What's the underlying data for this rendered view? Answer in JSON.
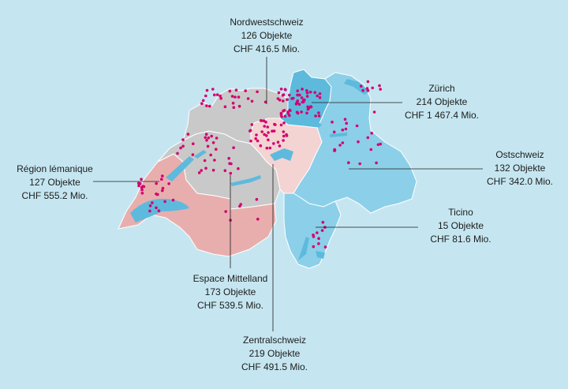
{
  "regions": [
    {
      "id": "nordwestschweiz",
      "name": "Nordwestschweiz",
      "count": "126 Objekte",
      "value": "CHF 416.5 Mio.",
      "color": "#c9c9c9"
    },
    {
      "id": "zuerich",
      "name": "Zürich",
      "count": "214 Objekte",
      "value": "CHF 1 467.4 Mio.",
      "color": "#5dbadd"
    },
    {
      "id": "ostschweiz",
      "name": "Ostschweiz",
      "count": "132 Objekte",
      "value": "CHF 342.0 Mio.",
      "color": "#8ccfe8"
    },
    {
      "id": "ticino",
      "name": "Ticino",
      "count": "15 Objekte",
      "value": "CHF 81.6 Mio.",
      "color": "#8ccfe8"
    },
    {
      "id": "zentralschweiz",
      "name": "Zentralschweiz",
      "count": "219 Objekte",
      "value": "CHF 491.5 Mio.",
      "color": "#f4d3d3"
    },
    {
      "id": "espace-mittelland",
      "name": "Espace Mittelland",
      "count": "173 Objekte",
      "value": "CHF 539.5 Mio.",
      "color": "#c9c9c9"
    },
    {
      "id": "region-lemanique",
      "name": "Région lémanique",
      "count": "127 Objekte",
      "value": "CHF 555.2 Mio.",
      "color": "#e8aeae"
    }
  ],
  "colors": {
    "background": "#c5e6f1",
    "marker": "#d4006f",
    "lake": "#5dbadd",
    "leader_line": "#1d1d1b"
  }
}
